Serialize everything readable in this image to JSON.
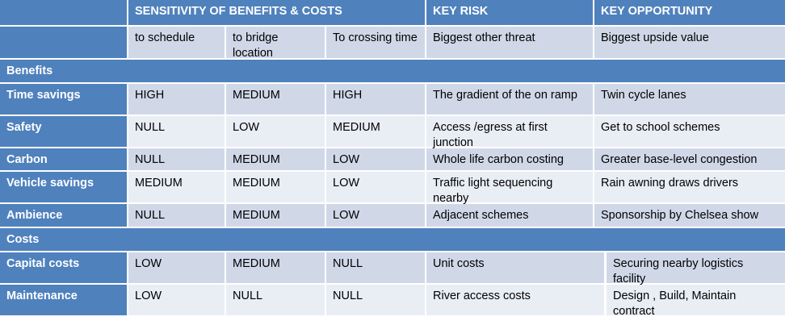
{
  "header": {
    "sensitivity": "SENSITIVITY OF BENEFITS  & COSTS",
    "key_risk": "KEY RISK",
    "key_opportunity": "KEY OPPORTUNITY"
  },
  "subheader": {
    "schedule": "to schedule",
    "bridge": "to bridge location",
    "crossing": "To crossing time",
    "risk": "Biggest other threat",
    "opportunity": "Biggest upside value"
  },
  "sections": {
    "benefits": "Benefits",
    "costs": "Costs"
  },
  "rows": [
    {
      "label": "Time savings",
      "schedule": "HIGH",
      "bridge": "MEDIUM",
      "crossing": "HIGH",
      "risk": "The gradient of the on ramp",
      "opportunity": "Twin cycle lanes"
    },
    {
      "label": "Safety",
      "schedule": "NULL",
      "bridge": "LOW",
      "crossing": "MEDIUM",
      "risk": "Access /egress at first junction",
      "opportunity": "Get to school schemes"
    },
    {
      "label": "Carbon",
      "schedule": "NULL",
      "bridge": "MEDIUM",
      "crossing": "LOW",
      "risk": "Whole life carbon costing",
      "opportunity": "Greater base-level congestion"
    },
    {
      "label": "Vehicle savings",
      "schedule": "MEDIUM",
      "bridge": "MEDIUM",
      "crossing": "LOW",
      "risk": "Traffic light sequencing nearby",
      "opportunity": "Rain awning draws drivers"
    },
    {
      "label": "Ambience",
      "schedule": "NULL",
      "bridge": "MEDIUM",
      "crossing": "LOW",
      "risk": "Adjacent schemes",
      "opportunity": "Sponsorship by Chelsea show"
    },
    {
      "label": "Capital costs",
      "schedule": "LOW",
      "bridge": "MEDIUM",
      "crossing": "NULL",
      "risk": "Unit costs",
      "opportunity": "Securing nearby logistics facility"
    },
    {
      "label": "Maintenance",
      "schedule": "LOW",
      "bridge": "NULL",
      "crossing": "NULL",
      "risk": "River access costs",
      "opportunity": "Design , Build, Maintain contract"
    }
  ]
}
